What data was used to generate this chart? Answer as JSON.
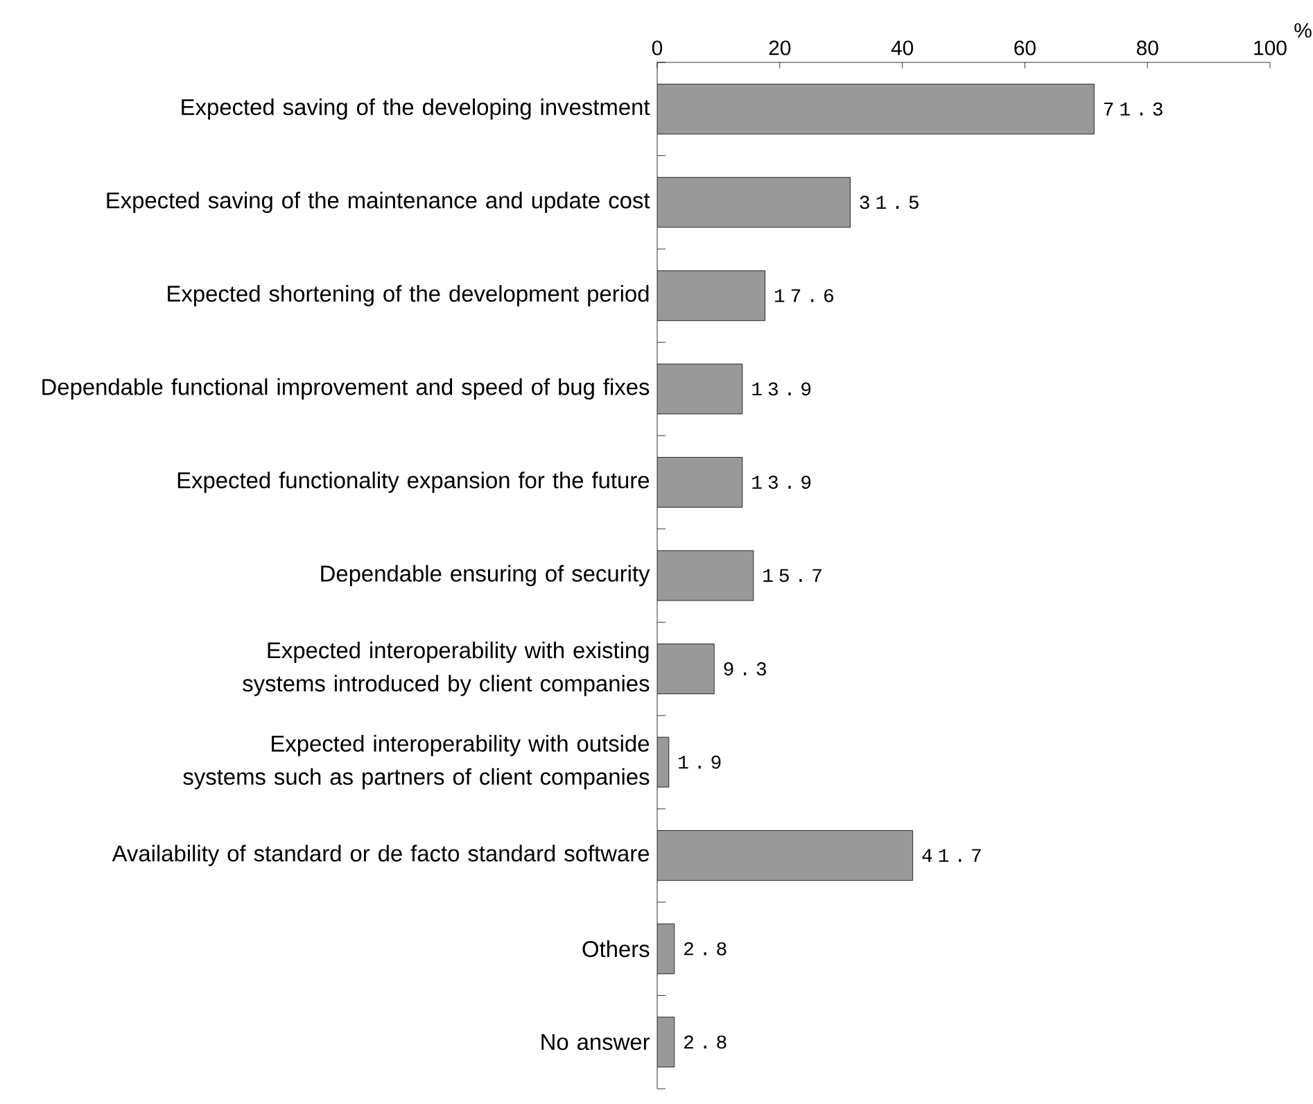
{
  "chart_data": {
    "type": "bar",
    "orientation": "horizontal",
    "xlabel": "%",
    "categories": [
      "Expected saving of the developing investment",
      "Expected saving of the maintenance and update cost",
      "Expected shortening of the development period",
      "Dependable functional improvement and speed of bug fixes",
      "Expected functionality expansion for the future",
      "Dependable ensuring of security",
      "Expected interoperability with existing systems introduced by client companies",
      "Expected interoperability with outside systems such as partners of client companies",
      "Availability of standard or de facto standard software",
      "Others",
      "No answer"
    ],
    "values": [
      71.3,
      31.5,
      17.6,
      13.9,
      13.9,
      15.7,
      9.3,
      1.9,
      41.7,
      2.8,
      2.8
    ],
    "color": "#999999",
    "xlim": [
      0,
      100
    ],
    "xticks": [
      0,
      20,
      40,
      60,
      80,
      100
    ],
    "data_labels": true,
    "grid": false
  }
}
